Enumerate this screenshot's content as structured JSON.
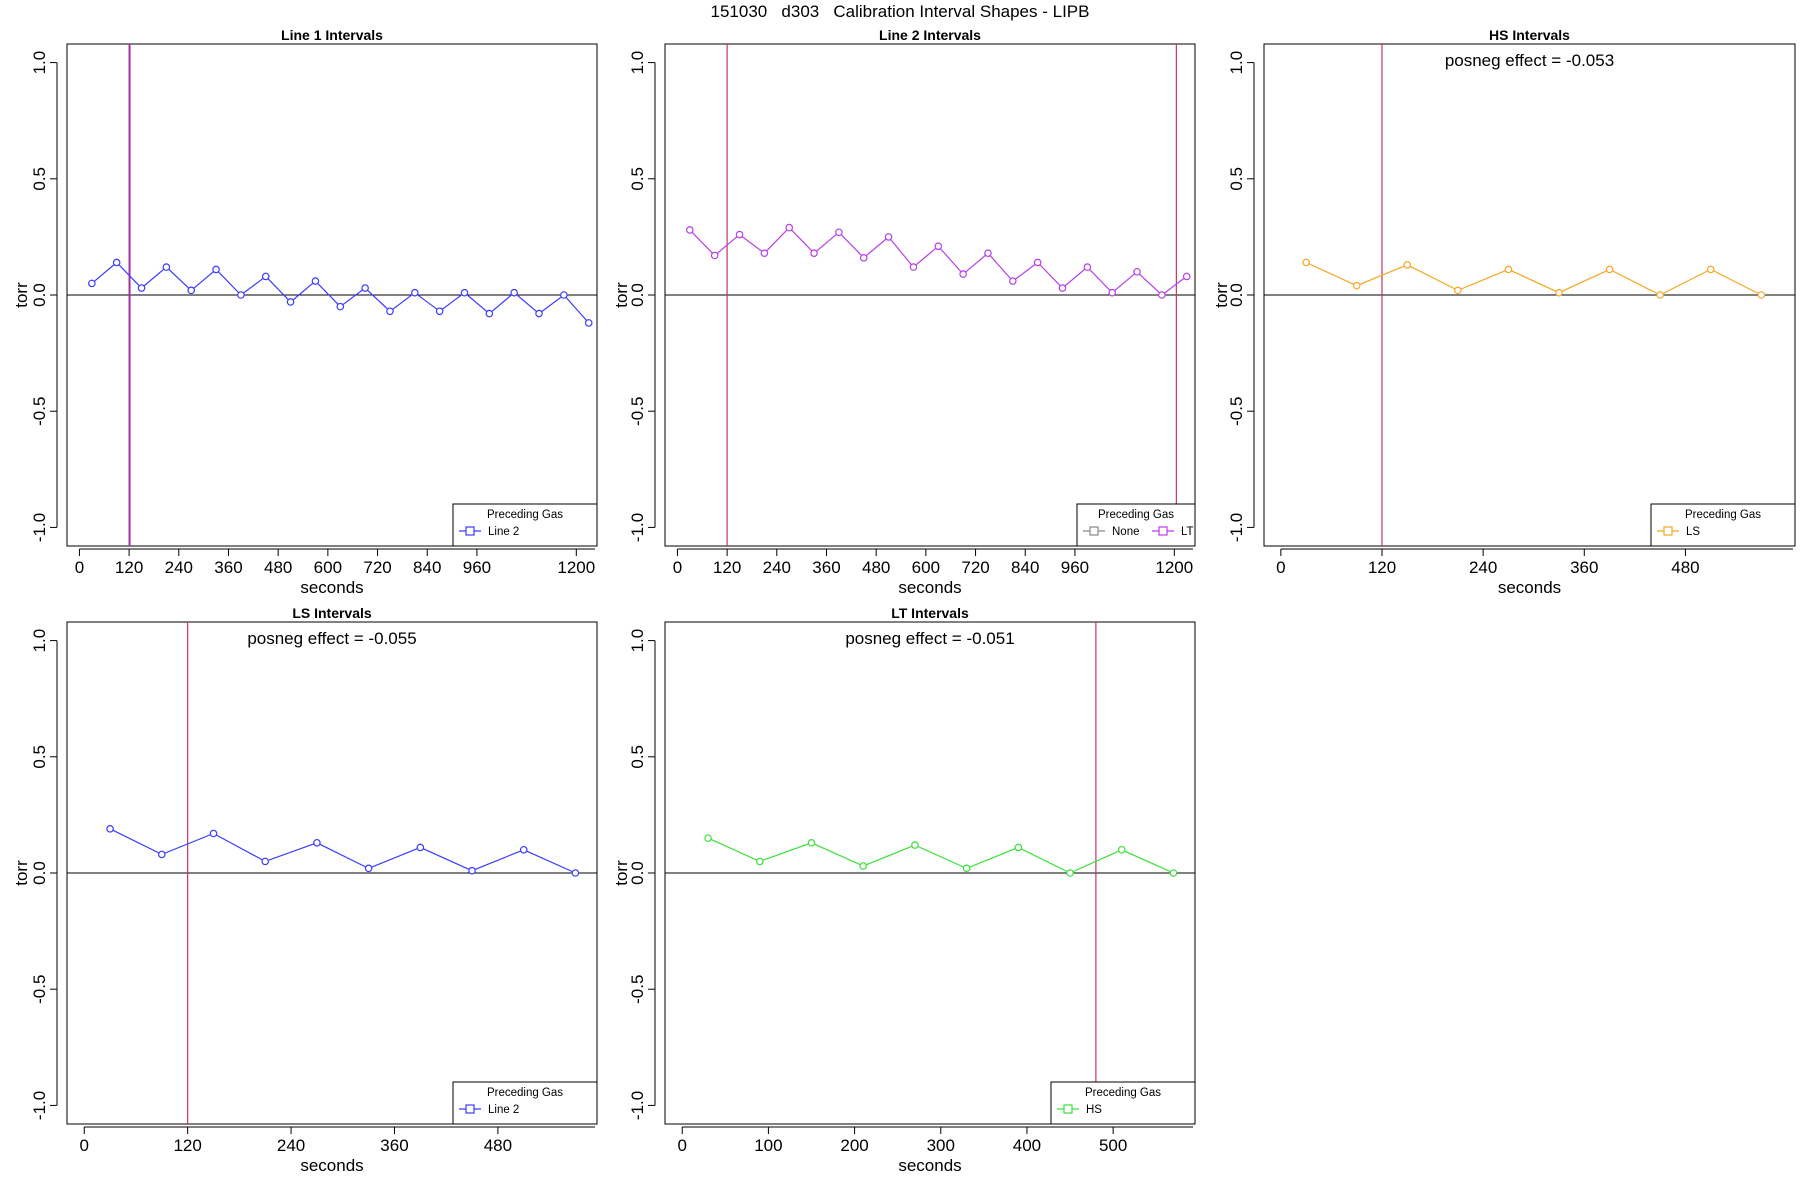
{
  "page": {
    "title": "151030   d303   Calibration Interval Shapes - LIPB"
  },
  "chart_data": [
    {
      "type": "line",
      "title": "Line 1 Intervals",
      "xlabel": "seconds",
      "ylabel": "torr",
      "ylim": [
        -1.0,
        1.0
      ],
      "xlim": [
        -30,
        1250
      ],
      "x_ticks": [
        "0",
        "120",
        "240",
        "360",
        "480",
        "600",
        "720",
        "840",
        "960",
        "1200"
      ],
      "x_tick_values": [
        0,
        120,
        240,
        360,
        480,
        600,
        720,
        840,
        960,
        1200
      ],
      "y_ticks": [
        "-1.0",
        "-0.5",
        "0.0",
        "0.5",
        "1.0"
      ],
      "y_tick_values": [
        -1.0,
        -0.5,
        0.0,
        0.5,
        1.0
      ],
      "vlines": [
        {
          "x": 120,
          "color": "#c8385a"
        },
        {
          "x": 122,
          "color": "#8a2be2"
        }
      ],
      "series": [
        {
          "name": "Line 2",
          "color": "#3b3bff",
          "x": [
            30,
            90,
            150,
            210,
            270,
            330,
            390,
            450,
            510,
            570,
            630,
            690,
            750,
            810,
            870,
            930,
            990,
            1050,
            1110,
            1170,
            1230
          ],
          "y": [
            0.05,
            0.14,
            0.03,
            0.12,
            0.02,
            0.11,
            0.0,
            0.08,
            -0.03,
            0.06,
            -0.05,
            0.03,
            -0.07,
            0.01,
            -0.07,
            0.01,
            -0.08,
            0.01,
            -0.08,
            0.0,
            -0.12
          ]
        }
      ],
      "legend": {
        "title": "Preceding Gas",
        "placement": "bottom-right"
      }
    },
    {
      "type": "line",
      "title": "Line 2 Intervals",
      "xlabel": "seconds",
      "ylabel": "torr",
      "ylim": [
        -1.0,
        1.0
      ],
      "xlim": [
        -30,
        1250
      ],
      "x_ticks": [
        "0",
        "120",
        "240",
        "360",
        "480",
        "600",
        "720",
        "840",
        "960",
        "1200"
      ],
      "x_tick_values": [
        0,
        120,
        240,
        360,
        480,
        600,
        720,
        840,
        960,
        1200
      ],
      "y_ticks": [
        "-1.0",
        "-0.5",
        "0.0",
        "0.5",
        "1.0"
      ],
      "y_tick_values": [
        -1.0,
        -0.5,
        0.0,
        0.5,
        1.0
      ],
      "vlines": [
        {
          "x": 120,
          "color": "#c8385a"
        },
        {
          "x": 1205,
          "color": "#c8385a"
        }
      ],
      "series": [
        {
          "name": "None",
          "color": "#888888",
          "x": [],
          "y": []
        },
        {
          "name": "LT",
          "color": "#b83ee6",
          "x": [
            30,
            90,
            150,
            210,
            270,
            330,
            390,
            450,
            510,
            570,
            630,
            690,
            750,
            810,
            870,
            930,
            990,
            1050,
            1110,
            1170,
            1230
          ],
          "y": [
            0.28,
            0.17,
            0.26,
            0.18,
            0.29,
            0.18,
            0.27,
            0.16,
            0.25,
            0.12,
            0.21,
            0.09,
            0.18,
            0.06,
            0.14,
            0.03,
            0.12,
            0.01,
            0.1,
            0.0,
            0.08
          ]
        }
      ],
      "legend": {
        "title": "Preceding Gas",
        "placement": "bottom-right"
      }
    },
    {
      "type": "line",
      "title": "HS Intervals",
      "xlabel": "seconds",
      "ylabel": "torr",
      "ylim": [
        -1.0,
        1.0
      ],
      "xlim": [
        -20,
        610
      ],
      "x_ticks": [
        "0",
        "120",
        "240",
        "360",
        "480"
      ],
      "x_tick_values": [
        0,
        120,
        240,
        360,
        480
      ],
      "y_ticks": [
        "-1.0",
        "-0.5",
        "0.0",
        "0.5",
        "1.0"
      ],
      "y_tick_values": [
        -1.0,
        -0.5,
        0.0,
        0.5,
        1.0
      ],
      "vlines": [
        {
          "x": 120,
          "color": "#c8385a"
        }
      ],
      "annotation": "posneg effect = -0.053",
      "series": [
        {
          "name": "LS",
          "color": "#f5a623",
          "x": [
            30,
            90,
            150,
            210,
            270,
            330,
            390,
            450,
            510,
            570
          ],
          "y": [
            0.14,
            0.04,
            0.13,
            0.02,
            0.11,
            0.01,
            0.11,
            0.0,
            0.11,
            0.0
          ]
        }
      ],
      "legend": {
        "title": "Preceding Gas",
        "placement": "bottom-right"
      }
    },
    {
      "type": "line",
      "title": "LS Intervals",
      "xlabel": "seconds",
      "ylabel": "torr",
      "ylim": [
        -1.0,
        1.0
      ],
      "xlim": [
        -20,
        595
      ],
      "x_ticks": [
        "0",
        "120",
        "240",
        "360",
        "480"
      ],
      "x_tick_values": [
        0,
        120,
        240,
        360,
        480
      ],
      "y_ticks": [
        "-1.0",
        "-0.5",
        "0.0",
        "0.5",
        "1.0"
      ],
      "y_tick_values": [
        -1.0,
        -0.5,
        0.0,
        0.5,
        1.0
      ],
      "vlines": [
        {
          "x": 120,
          "color": "#c8385a"
        }
      ],
      "annotation": "posneg effect = -0.055",
      "series": [
        {
          "name": "Line 2",
          "color": "#3b3bff",
          "x": [
            30,
            90,
            150,
            210,
            270,
            330,
            390,
            450,
            510,
            570
          ],
          "y": [
            0.19,
            0.08,
            0.17,
            0.05,
            0.13,
            0.02,
            0.11,
            0.01,
            0.1,
            -0.0
          ]
        }
      ],
      "legend": {
        "title": "Preceding Gas",
        "placement": "bottom-right"
      }
    },
    {
      "type": "line",
      "title": "LT Intervals",
      "xlabel": "seconds",
      "ylabel": "torr",
      "ylim": [
        -1.0,
        1.0
      ],
      "xlim": [
        -20,
        595
      ],
      "x_ticks": [
        "0",
        "100",
        "200",
        "300",
        "400",
        "500"
      ],
      "x_tick_values": [
        0,
        100,
        200,
        300,
        400,
        500
      ],
      "y_ticks": [
        "-1.0",
        "-0.5",
        "0.0",
        "0.5",
        "1.0"
      ],
      "y_tick_values": [
        -1.0,
        -0.5,
        0.0,
        0.5,
        1.0
      ],
      "vlines": [
        {
          "x": 480,
          "color": "#c8385a"
        }
      ],
      "annotation": "posneg effect = -0.051",
      "series": [
        {
          "name": "HS",
          "color": "#3ae03a",
          "x": [
            30,
            90,
            150,
            210,
            270,
            330,
            390,
            450,
            510,
            570
          ],
          "y": [
            0.15,
            0.05,
            0.13,
            0.03,
            0.12,
            0.02,
            0.11,
            0.0,
            0.1,
            0.0
          ]
        }
      ],
      "legend": {
        "title": "Preceding Gas",
        "placement": "bottom-right"
      }
    }
  ]
}
